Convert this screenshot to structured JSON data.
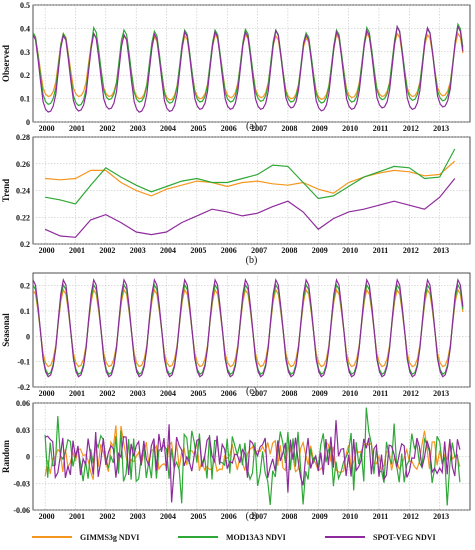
{
  "chart_data": [
    {
      "type": "line",
      "panel_label": "(a)",
      "ylabel": "Observed",
      "ylim": [
        0,
        0.5
      ],
      "yticks": [
        "0",
        "0.1",
        "0.2",
        "0.3",
        "0.4",
        "0.5"
      ],
      "xticks": [
        "2000",
        "2001",
        "2002",
        "2003",
        "2004",
        "2005",
        "2006",
        "2007",
        "2008",
        "2009",
        "2010",
        "2011",
        "2012",
        "2013"
      ],
      "xlim": [
        1999.6,
        2014.0
      ],
      "grid": true,
      "series": [
        {
          "name": "GIMMS3g NDVI",
          "color": "#f5961e",
          "base": [
            0.255,
            0.255,
            0.255,
            0.245,
            0.24,
            0.245,
            0.25,
            0.25,
            0.245,
            0.24,
            0.25,
            0.255,
            0.255,
            0.255,
            0.26
          ],
          "amp": [
            0.175,
            0.175,
            0.175,
            0.175,
            0.175,
            0.175,
            0.175,
            0.175,
            0.175,
            0.17,
            0.175,
            0.175,
            0.175,
            0.17,
            0.17
          ]
        },
        {
          "name": "MOD13A3 NDVI",
          "color": "#2ea836",
          "base": [
            0.235,
            0.23,
            0.255,
            0.245,
            0.24,
            0.245,
            0.245,
            0.248,
            0.245,
            0.238,
            0.245,
            0.255,
            0.255,
            0.25,
            0.27
          ],
          "amp": [
            0.2,
            0.2,
            0.2,
            0.2,
            0.2,
            0.2,
            0.2,
            0.2,
            0.2,
            0.195,
            0.2,
            0.2,
            0.205,
            0.2,
            0.2
          ]
        },
        {
          "name": "SPOT-VEG NDVI",
          "color": "#8e2b9c",
          "base": [
            0.21,
            0.212,
            0.22,
            0.21,
            0.213,
            0.222,
            0.222,
            0.222,
            0.228,
            0.213,
            0.222,
            0.228,
            0.23,
            0.235,
            0.245
          ],
          "amp": [
            0.215,
            0.21,
            0.21,
            0.215,
            0.215,
            0.215,
            0.215,
            0.215,
            0.215,
            0.21,
            0.215,
            0.215,
            0.23,
            0.22,
            0.215
          ]
        }
      ]
    },
    {
      "type": "line",
      "panel_label": "(b)",
      "ylabel": "Trend",
      "ylim": [
        0.2,
        0.28
      ],
      "yticks": [
        "0.2",
        "0.22",
        "0.24",
        "0.26",
        "0.28"
      ],
      "xticks": [
        "2000",
        "2001",
        "2002",
        "2003",
        "2004",
        "2005",
        "2006",
        "2007",
        "2008",
        "2009",
        "2010",
        "2011",
        "2012",
        "2013"
      ],
      "xlim": [
        1999.6,
        2014.0
      ],
      "grid": true,
      "series": [
        {
          "name": "GIMMS3g NDVI",
          "color": "#f5961e",
          "x": [
            2000.0,
            2000.5,
            2001.0,
            2001.5,
            2002.0,
            2002.5,
            2003.0,
            2003.5,
            2004.0,
            2004.5,
            2005.0,
            2005.5,
            2006.0,
            2006.5,
            2007.0,
            2007.5,
            2008.0,
            2008.5,
            2009.0,
            2009.5,
            2010.0,
            2010.5,
            2011.0,
            2011.5,
            2012.0,
            2012.5,
            2013.0,
            2013.5
          ],
          "y": [
            0.249,
            0.248,
            0.249,
            0.255,
            0.255,
            0.246,
            0.24,
            0.236,
            0.241,
            0.244,
            0.247,
            0.246,
            0.243,
            0.246,
            0.247,
            0.245,
            0.244,
            0.246,
            0.241,
            0.238,
            0.246,
            0.25,
            0.253,
            0.255,
            0.254,
            0.251,
            0.252,
            0.262
          ]
        },
        {
          "name": "MOD13A3 NDVI",
          "color": "#2ea836",
          "x": [
            2000.0,
            2000.5,
            2001.0,
            2001.5,
            2002.0,
            2002.5,
            2003.0,
            2003.5,
            2004.0,
            2004.5,
            2005.0,
            2005.5,
            2006.0,
            2006.5,
            2007.0,
            2007.5,
            2008.0,
            2008.5,
            2009.0,
            2009.5,
            2010.0,
            2010.5,
            2011.0,
            2011.5,
            2012.0,
            2012.5,
            2013.0,
            2013.5
          ],
          "y": [
            0.235,
            0.233,
            0.23,
            0.244,
            0.257,
            0.25,
            0.244,
            0.239,
            0.243,
            0.247,
            0.249,
            0.246,
            0.246,
            0.249,
            0.252,
            0.259,
            0.258,
            0.246,
            0.234,
            0.236,
            0.243,
            0.25,
            0.254,
            0.258,
            0.257,
            0.249,
            0.25,
            0.271
          ]
        },
        {
          "name": "SPOT-VEG NDVI",
          "color": "#8e2b9c",
          "x": [
            2000.0,
            2000.5,
            2001.0,
            2001.5,
            2002.0,
            2002.5,
            2003.0,
            2003.5,
            2004.0,
            2004.5,
            2005.0,
            2005.5,
            2006.0,
            2006.5,
            2007.0,
            2007.5,
            2008.0,
            2008.5,
            2009.0,
            2009.5,
            2010.0,
            2010.5,
            2011.0,
            2011.5,
            2012.0,
            2012.5,
            2013.0,
            2013.5
          ],
          "y": [
            0.211,
            0.206,
            0.205,
            0.218,
            0.222,
            0.216,
            0.209,
            0.207,
            0.209,
            0.216,
            0.221,
            0.226,
            0.224,
            0.221,
            0.223,
            0.228,
            0.232,
            0.224,
            0.211,
            0.219,
            0.224,
            0.226,
            0.229,
            0.232,
            0.229,
            0.226,
            0.235,
            0.249
          ]
        }
      ]
    },
    {
      "type": "line",
      "panel_label": "(c)",
      "ylabel": "Seasonal",
      "ylim": [
        -0.2,
        0.25
      ],
      "yticks": [
        "-0.2",
        "-0.1",
        "0",
        "0.1",
        "0.2"
      ],
      "xticks": [
        "2000",
        "2001",
        "2002",
        "2003",
        "2004",
        "2005",
        "2006",
        "2007",
        "2008",
        "2009",
        "2010",
        "2011",
        "2012",
        "2013"
      ],
      "xlim": [
        1999.6,
        2014.0
      ],
      "grid": true,
      "series": [
        {
          "name": "GIMMS3g NDVI",
          "color": "#f5961e",
          "amp": 0.185,
          "floor": -0.12
        },
        {
          "name": "MOD13A3 NDVI",
          "color": "#2ea836",
          "amp": 0.205,
          "floor": -0.15
        },
        {
          "name": "SPOT-VEG NDVI",
          "color": "#8e2b9c",
          "amp": 0.225,
          "floor": -0.16
        }
      ]
    },
    {
      "type": "line",
      "panel_label": "(d)",
      "ylabel": "Random",
      "ylim": [
        -0.06,
        0.06
      ],
      "yticks": [
        "-0.06",
        "-0.03",
        "0",
        "0.03",
        "0.06"
      ],
      "xticks": [
        "2000",
        "2001",
        "2002",
        "2003",
        "2004",
        "2005",
        "2006",
        "2007",
        "2008",
        "2009",
        "2010",
        "2011",
        "2012",
        "2013"
      ],
      "xlim": [
        1999.6,
        2014.0
      ],
      "grid": true,
      "series": [
        {
          "name": "GIMMS3g NDVI",
          "color": "#f5961e",
          "scale": 0.012,
          "seed": 3
        },
        {
          "name": "MOD13A3 NDVI",
          "color": "#2ea836",
          "scale": 0.02,
          "seed": 11
        },
        {
          "name": "SPOT-VEG NDVI",
          "color": "#8e2b9c",
          "scale": 0.016,
          "seed": 29
        }
      ]
    }
  ],
  "legend": {
    "placement": "bottom",
    "entries": [
      {
        "label": "GIMMS3g NDVI",
        "color": "#f5961e"
      },
      {
        "label": "MOD13A3 NDVI",
        "color": "#2ea836"
      },
      {
        "label": "SPOT-VEG NDVI",
        "color": "#8e2b9c"
      }
    ]
  }
}
